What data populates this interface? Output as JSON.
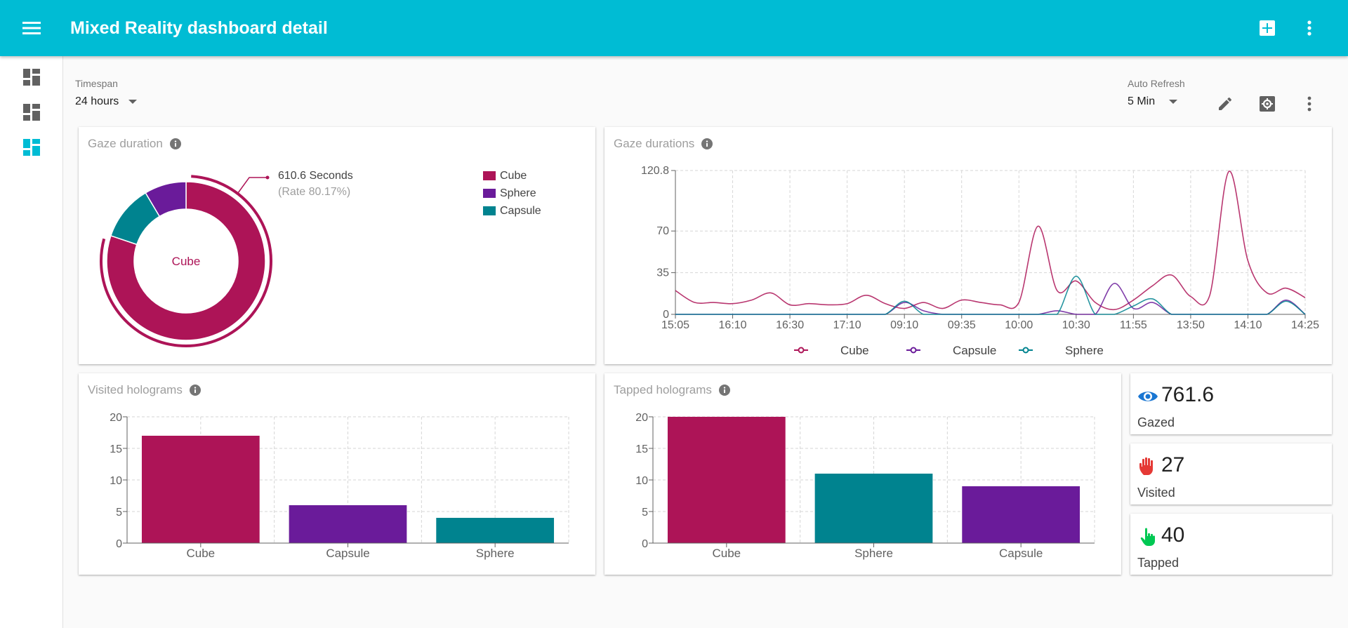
{
  "header": {
    "title": "Mixed Reality dashboard detail"
  },
  "toolbar": {
    "timespan_label": "Timespan",
    "timespan_value": "24 hours",
    "refresh_label": "Auto Refresh",
    "refresh_value": "5 Min"
  },
  "colors": {
    "cube": "#ad1457",
    "capsule": "#6a1b9a",
    "sphere": "#00838f",
    "accent": "#00bcd4"
  },
  "donut": {
    "title": "Gaze duration",
    "center_label": "Cube",
    "callout_value": "610.6 Seconds",
    "callout_rate": "(Rate 80.17%)",
    "legend": [
      "Cube",
      "Sphere",
      "Capsule"
    ]
  },
  "line": {
    "title": "Gaze durations",
    "legend": [
      "Cube",
      "Capsule",
      "Sphere"
    ]
  },
  "visited": {
    "title": "Visited holograms"
  },
  "tapped": {
    "title": "Tapped holograms"
  },
  "kpis": [
    {
      "value": "761.6",
      "label": "Gazed",
      "icon": "eye-icon"
    },
    {
      "value": "27",
      "label": "Visited",
      "icon": "hand-icon"
    },
    {
      "value": "40",
      "label": "Tapped",
      "icon": "tap-icon"
    }
  ],
  "chart_data": [
    {
      "type": "pie",
      "title": "Gaze duration",
      "categories": [
        "Cube",
        "Sphere",
        "Capsule"
      ],
      "values": [
        80.17,
        11.3,
        8.53
      ],
      "highlight": "Cube"
    },
    {
      "type": "line",
      "title": "Gaze durations",
      "x": [
        "15:05",
        "",
        "",
        "16:10",
        "",
        "",
        "16:30",
        "",
        "",
        "17:10",
        "",
        "",
        "09:10",
        "",
        "",
        "09:35",
        "",
        "",
        "10:00",
        "",
        "",
        "10:30",
        "",
        "",
        "11:55",
        "",
        "",
        "13:50",
        "",
        "",
        "14:10",
        "",
        "",
        "14:25"
      ],
      "x_ticks": [
        "15:05",
        "16:10",
        "16:30",
        "17:10",
        "09:10",
        "09:35",
        "10:00",
        "10:30",
        "11:55",
        "13:50",
        "14:10",
        "14:25"
      ],
      "y_ticks": [
        0,
        35,
        70,
        120.8
      ],
      "ylim": [
        0,
        120.8
      ],
      "series": [
        {
          "name": "Cube",
          "values": [
            20,
            10,
            10,
            9,
            12,
            18,
            8,
            9,
            8,
            9,
            16,
            9,
            5,
            10,
            5,
            12,
            10,
            8,
            10,
            74,
            20,
            28,
            10,
            4,
            12,
            24,
            33,
            15,
            16,
            120,
            45,
            18,
            22,
            14
          ]
        },
        {
          "name": "Capsule",
          "values": [
            0,
            0,
            0,
            0,
            0,
            0,
            0,
            0,
            0,
            0,
            0,
            0,
            10,
            3,
            0,
            0,
            0,
            0,
            0,
            0,
            3,
            0,
            0,
            26,
            5,
            10,
            0,
            0,
            0,
            0,
            0,
            0,
            12,
            0
          ]
        },
        {
          "name": "Sphere",
          "values": [
            0,
            0,
            0,
            0,
            0,
            0,
            0,
            0,
            0,
            0,
            0,
            0,
            11,
            0,
            0,
            0,
            0,
            0,
            0,
            0,
            0,
            32,
            0,
            0,
            7,
            13,
            0,
            0,
            0,
            0,
            0,
            0,
            11,
            0
          ]
        }
      ]
    },
    {
      "type": "bar",
      "title": "Visited holograms",
      "categories": [
        "Cube",
        "Capsule",
        "Sphere"
      ],
      "values": [
        17,
        6,
        4
      ],
      "y_ticks": [
        0,
        5,
        10,
        15,
        20
      ],
      "ylim": [
        0,
        20
      ]
    },
    {
      "type": "bar",
      "title": "Tapped holograms",
      "categories": [
        "Cube",
        "Sphere",
        "Capsule"
      ],
      "values": [
        20,
        11,
        9
      ],
      "y_ticks": [
        0,
        5,
        10,
        15,
        20
      ],
      "ylim": [
        0,
        20
      ]
    }
  ]
}
